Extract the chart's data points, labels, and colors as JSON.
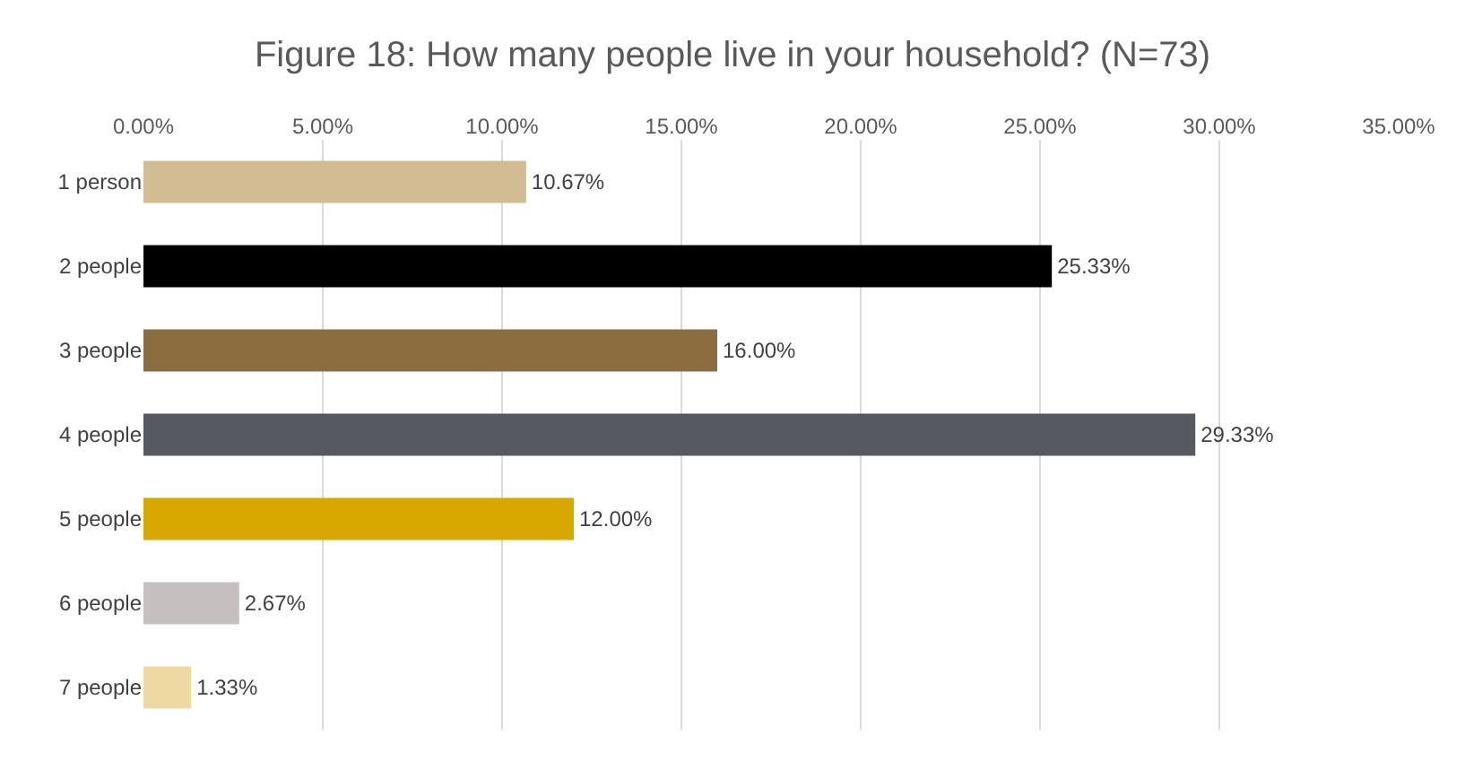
{
  "chart_data": {
    "type": "bar",
    "orientation": "horizontal",
    "title": "Figure 18: How many people live in your household? (N=73)",
    "categories": [
      "1 person",
      "2 people",
      "3 people",
      "4 people",
      "5 people",
      "6 people",
      "7 people"
    ],
    "values": [
      10.67,
      25.33,
      16.0,
      29.33,
      12.0,
      2.67,
      1.33
    ],
    "colors": [
      "#d1bc93",
      "#000000",
      "#8c6d3f",
      "#565960",
      "#d9a800",
      "#c5bfbf",
      "#eed9a0"
    ],
    "value_labels": [
      "10.67%",
      "25.33%",
      "16.00%",
      "29.33%",
      "12.00%",
      "2.67%",
      "1.33%"
    ],
    "xlim": [
      0,
      35
    ],
    "xticks": [
      {
        "value": 0,
        "label": "0.00%"
      },
      {
        "value": 5,
        "label": "5.00%"
      },
      {
        "value": 10,
        "label": "10.00%"
      },
      {
        "value": 15,
        "label": "15.00%"
      },
      {
        "value": 20,
        "label": "20.00%"
      },
      {
        "value": 25,
        "label": "25.00%"
      },
      {
        "value": 30,
        "label": "30.00%"
      },
      {
        "value": 35,
        "label": "35.00%"
      }
    ],
    "grid": "x"
  }
}
